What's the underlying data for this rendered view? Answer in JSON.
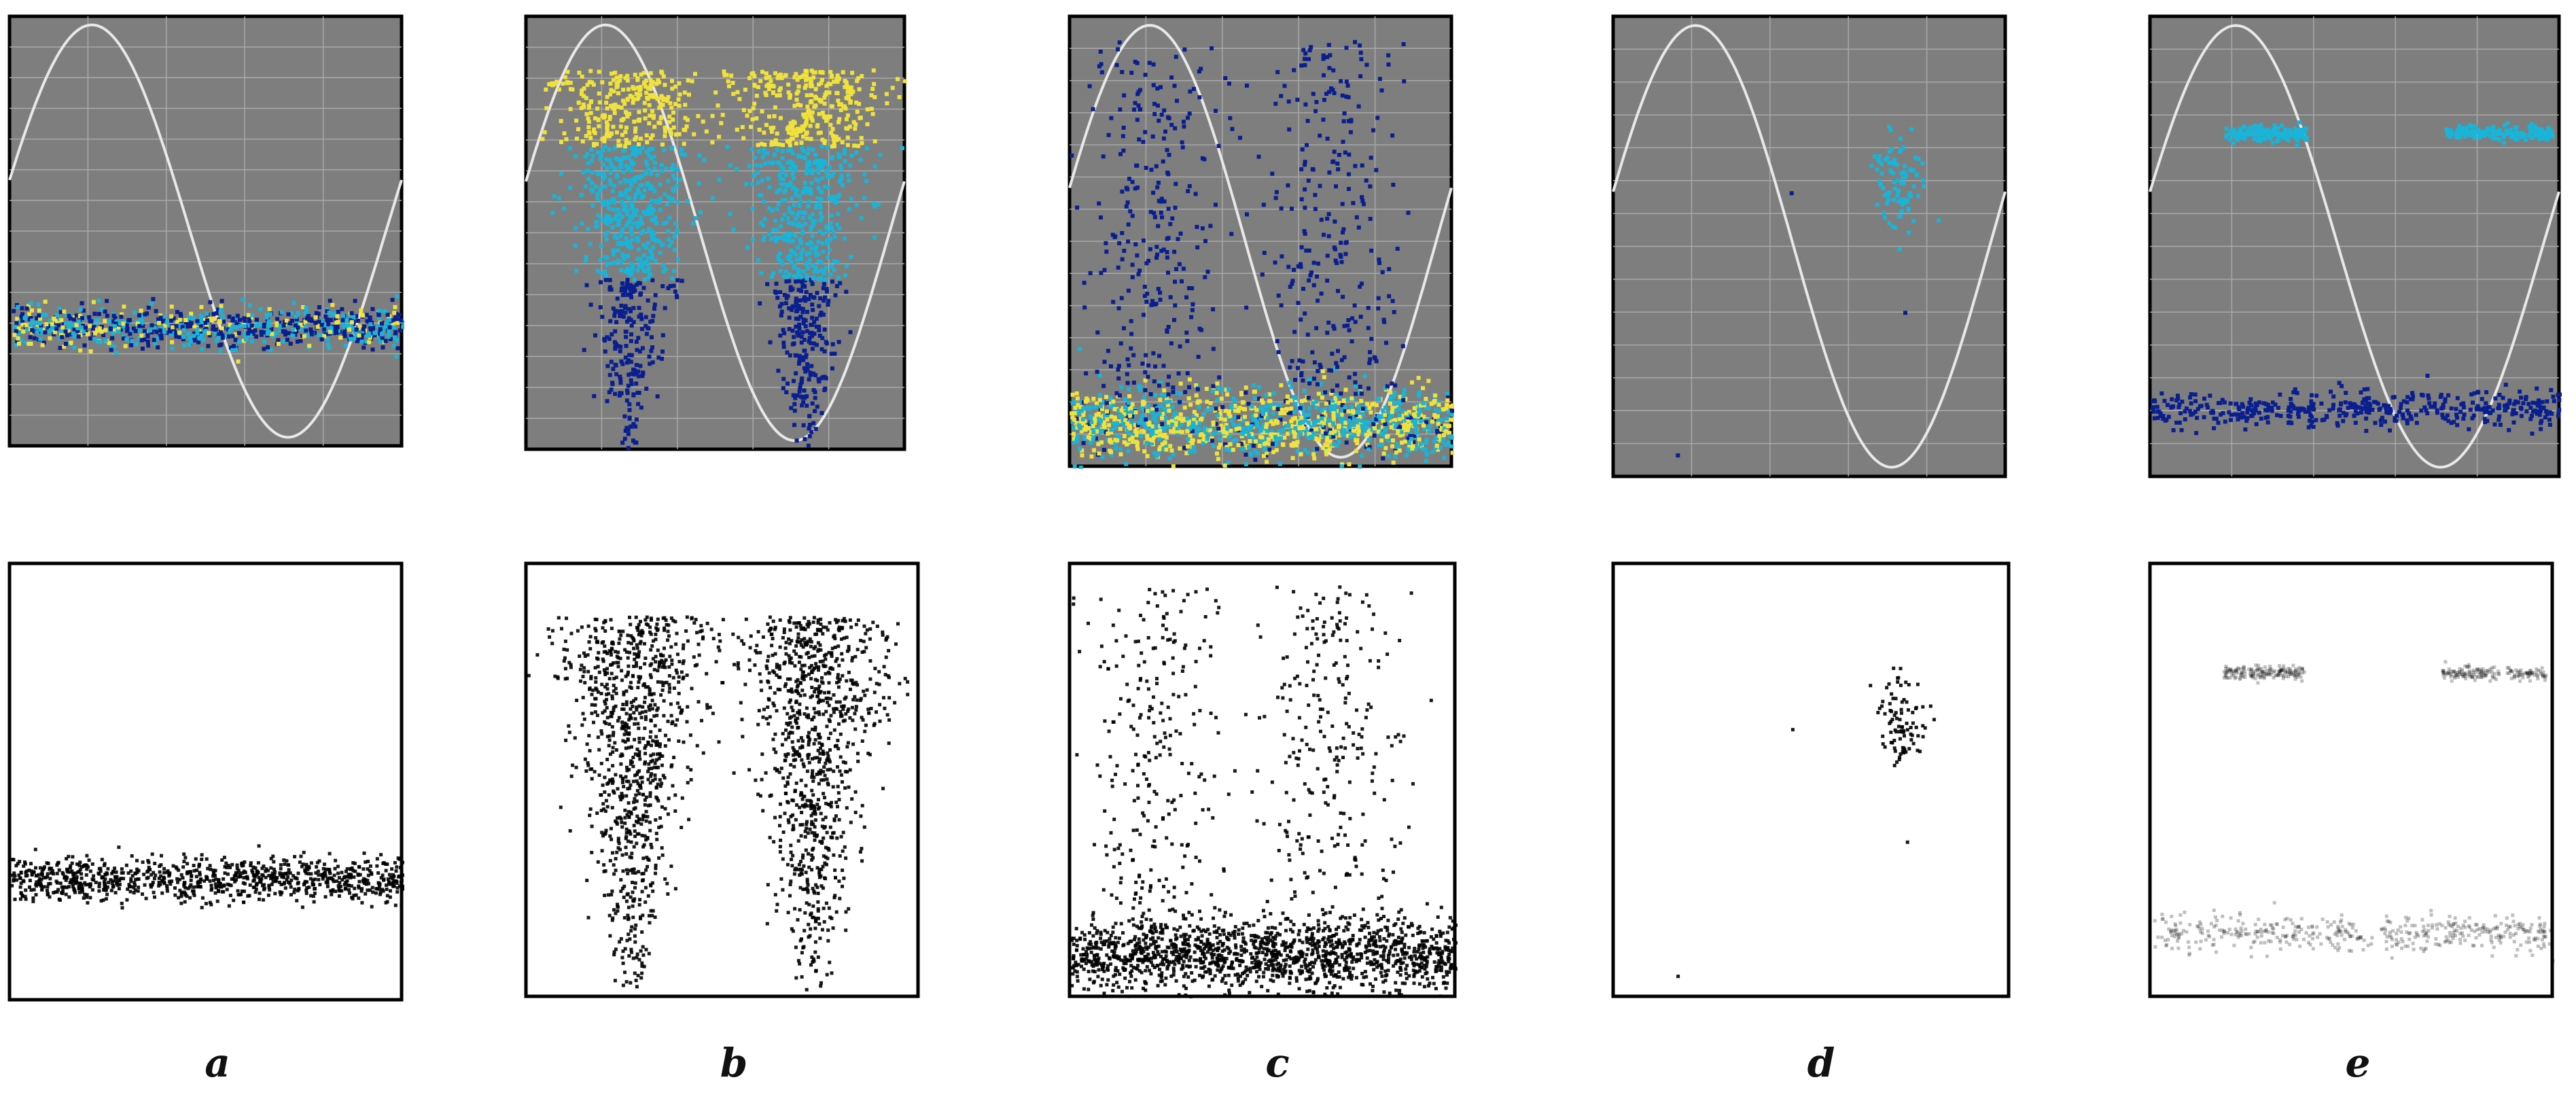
{
  "panels": [
    {
      "id": "a",
      "label": "a",
      "pattern": "band",
      "band_center": 0.72,
      "band_spread": 0.06
    },
    {
      "id": "b",
      "label": "b",
      "pattern": "double_cone"
    },
    {
      "id": "c",
      "label": "c",
      "pattern": "floor_plus_cones"
    },
    {
      "id": "d",
      "label": "d",
      "pattern": "cluster",
      "cluster_x": 0.72,
      "cluster_y": 0.36
    },
    {
      "id": "e",
      "label": "e",
      "pattern": "two_bands",
      "upper_y": 0.25,
      "lower_y": 0.85
    }
  ],
  "colors": {
    "top_background": "#7e7e7e",
    "grid": "#a9a9a9",
    "sine": "#e8e8e8",
    "scatter_low": "#0a1f8f",
    "scatter_mid": "#19b4d8",
    "scatter_high": "#f0e23a",
    "bottom_background": "#ffffff",
    "bottom_points": "#000000"
  }
}
